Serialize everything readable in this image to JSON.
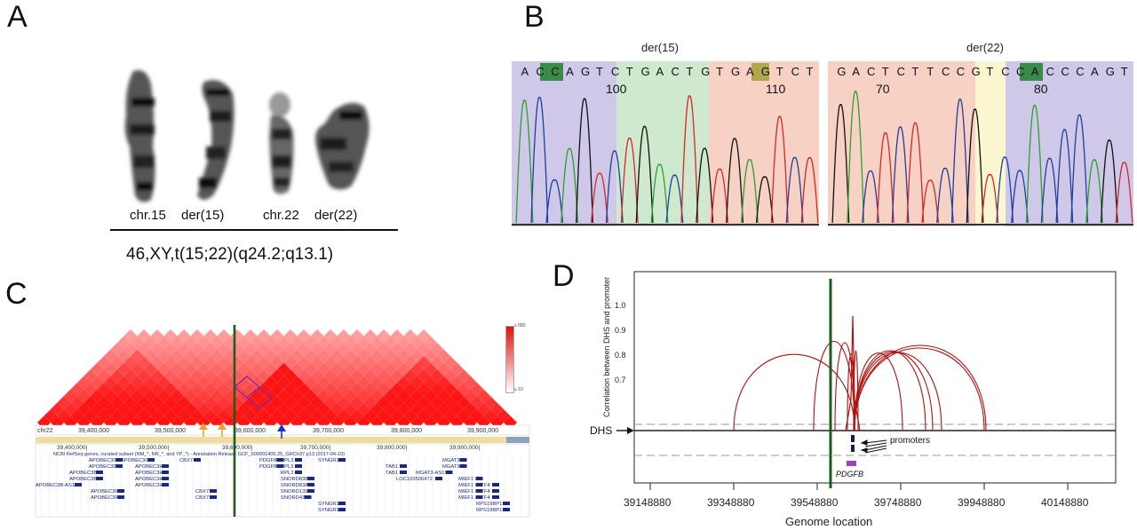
{
  "panels": {
    "a": "A",
    "b": "B",
    "c": "C",
    "d": "D"
  },
  "panel_a": {
    "labels": [
      "chr.15",
      "der(15)",
      "chr.22",
      "der(22)"
    ],
    "karyotype": "46,XY,t(15;22)(q24.2;q13.1)"
  },
  "panel_b": {
    "left": {
      "title": "der(15)",
      "sequence": "ACCAGTCTGACTGTGAGTCT",
      "position_labels": [
        "100",
        "110"
      ]
    },
    "right": {
      "title": "der(22)",
      "sequence": "GACTCTTCCGTCCACCCAGT",
      "position_labels": [
        "70",
        "80"
      ]
    },
    "colors": {
      "violet": "#cfc8e8",
      "green": "#cfe9cf",
      "salmon": "#f7d2c4",
      "yellow": "#fbf6d0",
      "highlight_green": "#3a8a4a",
      "highlight_olive": "#b0a64a",
      "base_A": "#2ca02c",
      "base_C": "#1f3fa0",
      "base_G": "#111111",
      "base_T": "#d62728"
    }
  },
  "panel_c": {
    "chrom": "chr22",
    "coords": [
      "39,400,000",
      "39,500,000",
      "39,600,000",
      "39,700,000",
      "39,800,000",
      "39,900,000"
    ],
    "track_coords": [
      "39,400,000|",
      "39,500,000|",
      "39,600,000|",
      "39,700,000|",
      "39,800,000|",
      "39,900,000|"
    ],
    "track_title": "NCBI RefSeq genes, curated subset (NM_*, NR_*, and YP_*) - Annotation Release GCF_000001405.25_GRCh37.p13 (2017-04-19)",
    "scale_max": "≤ 680",
    "scale_min": "≤ 10",
    "genes": [
      "APOBEC3C",
      "APOBEC3D",
      "APOBEC3B",
      "APOBEC3B",
      "APOBEC3B-AS1",
      "APOBEC3F",
      "APOBEC3F",
      "APOBEC3G",
      "APOBEC3H",
      "APOBEC3H",
      "APOBEC3H",
      "APOBEC3H",
      "CBX7",
      "CBX7",
      "CBX7",
      "PDGFB",
      "PDGFB",
      "RPL3",
      "RPL3",
      "RPL3",
      "SNORD83B",
      "SNORD83A",
      "SNORD139",
      "SNORD43",
      "SYNGR1",
      "SYNGR1",
      "SYNGR1",
      "TAB1",
      "TAB1",
      "LOC100506472",
      "MGAT3",
      "MGAT3",
      "MGAT3-AS1",
      "MIEF1",
      "MIEF1",
      "MIEF1",
      "MIEF1",
      "ATF4",
      "ATF4",
      "ATF4",
      "RPS19BP1",
      "RPS19BP1"
    ],
    "arrow_colors": {
      "orange": "#f0a030",
      "blue": "#2030c0",
      "green_line": "#1e5c1e"
    }
  },
  "panel_d": {
    "ylabel": "Correlation between DHS and promoter",
    "y_ticks": [
      "0.7",
      "0.8",
      "0.9",
      "1.0"
    ],
    "x_ticks": [
      "39148880",
      "39348880",
      "39548880",
      "39748880",
      "39948880",
      "40148880"
    ],
    "xlabel": "Genome location",
    "dhs_label": "DHS",
    "promoters_label": "promoters",
    "gene_label": "PDGFB",
    "arc_color": "#b01010",
    "line_color": "#1e5c1e"
  }
}
